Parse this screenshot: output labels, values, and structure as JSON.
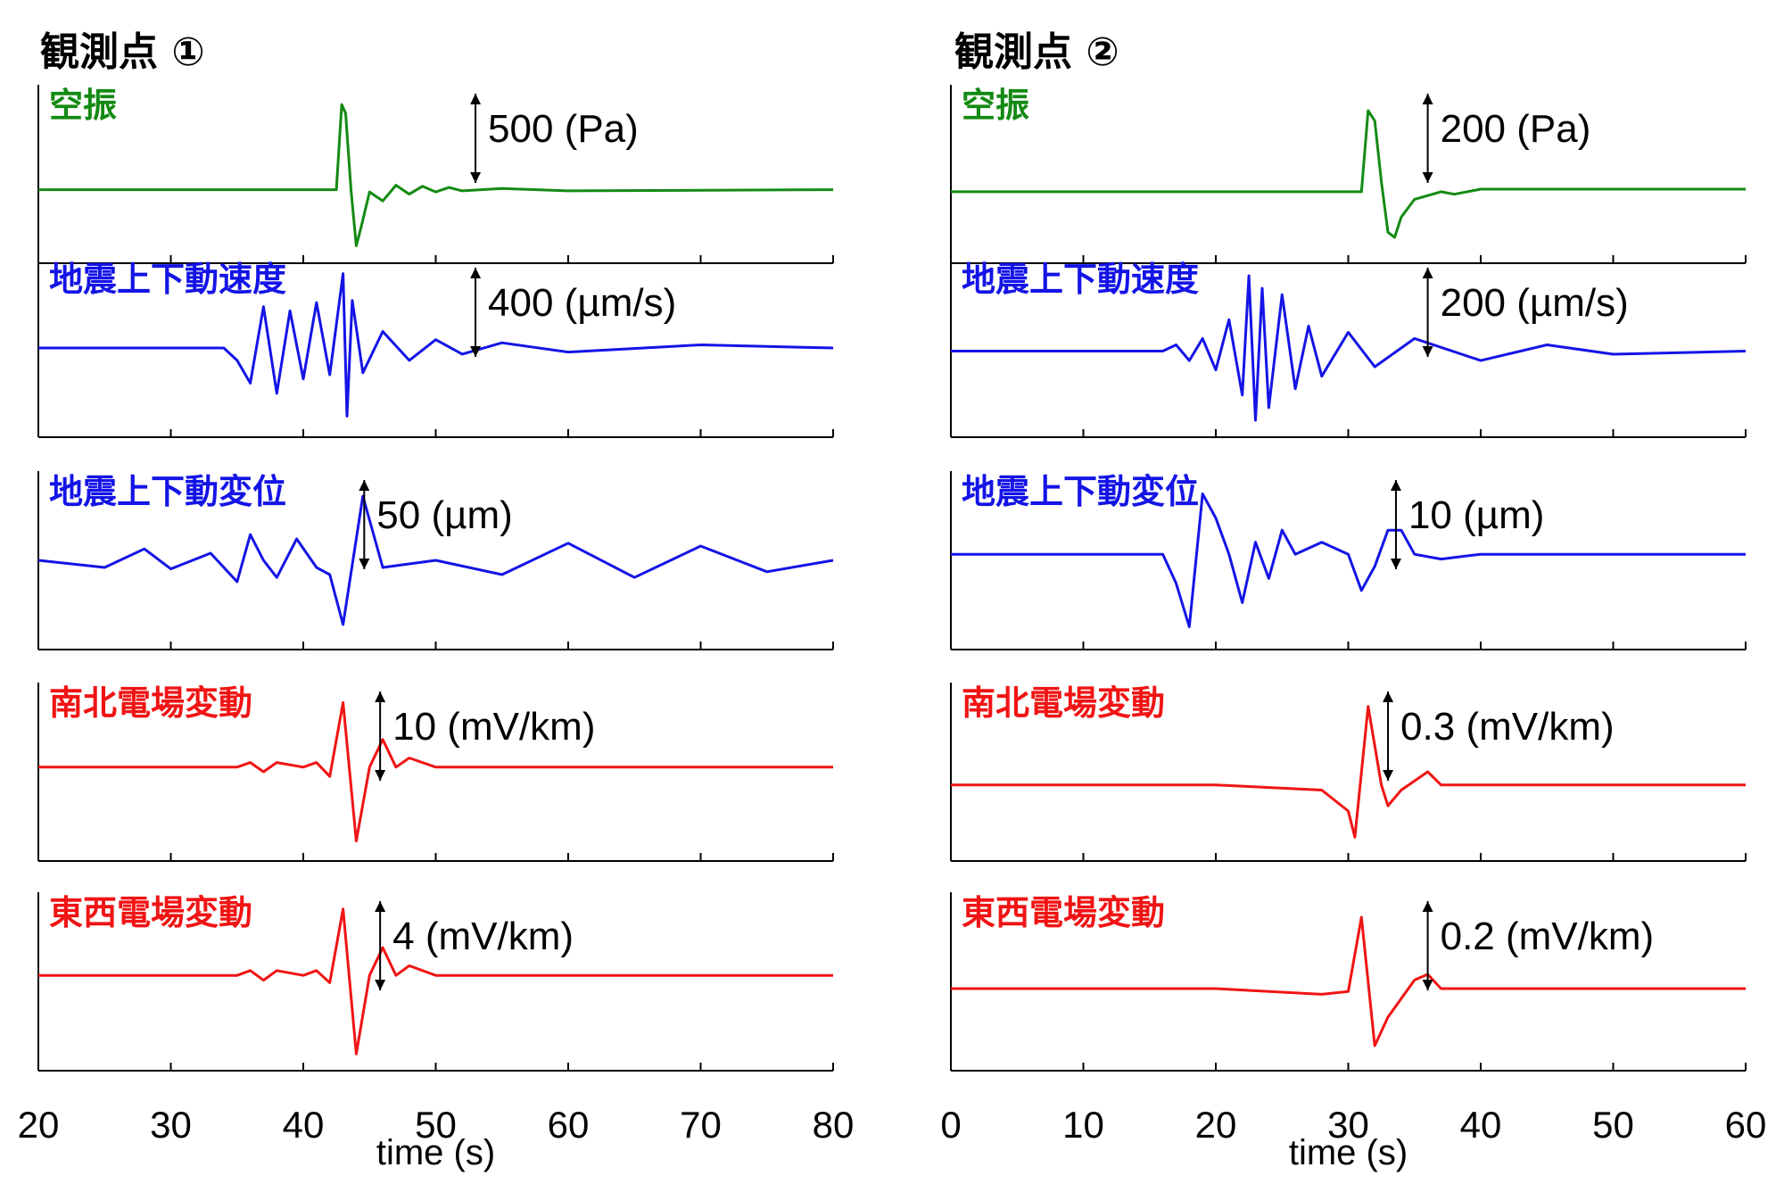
{
  "figure": {
    "columns": [
      {
        "title": "観測点 ①",
        "xlabel": "time (s)"
      },
      {
        "title": "観測点 ②",
        "xlabel": "time (s)"
      }
    ]
  },
  "colors": {
    "air": "#138a13",
    "seismic": "#1414e6",
    "electric": "#f01414"
  },
  "chart_data": [
    {
      "type": "line",
      "site": "観測点 ①",
      "xlabel": "time (s)",
      "xlim": [
        20,
        80
      ],
      "xticks": [
        20,
        30,
        40,
        50,
        60,
        70,
        80
      ],
      "panels": [
        {
          "name": "空振",
          "color": "#138a13",
          "scale": "500 (Pa)",
          "points": [
            [
              20,
              0
            ],
            [
              42.5,
              0
            ],
            [
              42.9,
              380
            ],
            [
              43.2,
              340
            ],
            [
              43.6,
              0
            ],
            [
              44,
              -250
            ],
            [
              44.4,
              -160
            ],
            [
              45,
              -10
            ],
            [
              46,
              -50
            ],
            [
              47,
              20
            ],
            [
              48,
              -20
            ],
            [
              49,
              15
            ],
            [
              50,
              -10
            ],
            [
              51,
              10
            ],
            [
              52,
              -5
            ],
            [
              55,
              5
            ],
            [
              60,
              -5
            ],
            [
              80,
              0
            ]
          ]
        },
        {
          "name": "地震上下動速度",
          "color": "#1414e6",
          "scale": "400 (µm/s)",
          "points": [
            [
              20,
              0
            ],
            [
              34,
              0
            ],
            [
              35,
              -60
            ],
            [
              36,
              -170
            ],
            [
              37,
              200
            ],
            [
              38,
              -220
            ],
            [
              39,
              180
            ],
            [
              40,
              -150
            ],
            [
              41,
              220
            ],
            [
              42,
              -130
            ],
            [
              43,
              360
            ],
            [
              43.3,
              -330
            ],
            [
              43.7,
              230
            ],
            [
              44.5,
              -120
            ],
            [
              46,
              80
            ],
            [
              48,
              -60
            ],
            [
              50,
              40
            ],
            [
              52,
              -30
            ],
            [
              55,
              25
            ],
            [
              60,
              -20
            ],
            [
              70,
              15
            ],
            [
              80,
              0
            ]
          ]
        },
        {
          "name": "地震上下動変位",
          "color": "#1414e6",
          "scale": "50 (µm)",
          "points": [
            [
              20,
              0
            ],
            [
              25,
              -5
            ],
            [
              28,
              8
            ],
            [
              30,
              -6
            ],
            [
              33,
              5
            ],
            [
              35,
              -15
            ],
            [
              36,
              18
            ],
            [
              37,
              0
            ],
            [
              38,
              -12
            ],
            [
              39.5,
              15
            ],
            [
              41,
              -5
            ],
            [
              42,
              -10
            ],
            [
              43,
              -45
            ],
            [
              44.5,
              45
            ],
            [
              46,
              -5
            ],
            [
              50,
              0
            ],
            [
              55,
              -10
            ],
            [
              60,
              12
            ],
            [
              65,
              -12
            ],
            [
              70,
              10
            ],
            [
              75,
              -8
            ],
            [
              80,
              0
            ]
          ]
        },
        {
          "name": "南北電場変動",
          "color": "#f01414",
          "scale": "10 (mV/km)",
          "points": [
            [
              20,
              0
            ],
            [
              35,
              0
            ],
            [
              36,
              1
            ],
            [
              37,
              -1
            ],
            [
              38,
              1
            ],
            [
              40,
              0
            ],
            [
              41,
              1
            ],
            [
              42,
              -2
            ],
            [
              43,
              14
            ],
            [
              44,
              -16
            ],
            [
              45,
              0
            ],
            [
              46,
              6
            ],
            [
              47,
              0
            ],
            [
              48,
              2
            ],
            [
              50,
              0
            ],
            [
              55,
              0
            ],
            [
              60,
              0
            ],
            [
              80,
              0
            ]
          ]
        },
        {
          "name": "東西電場変動",
          "color": "#f01414",
          "scale": "4 (mV/km)",
          "points": [
            [
              20,
              0
            ],
            [
              35,
              0
            ],
            [
              36,
              0.4
            ],
            [
              37,
              -0.4
            ],
            [
              38,
              0.4
            ],
            [
              40,
              0
            ],
            [
              41,
              0.4
            ],
            [
              42,
              -0.6
            ],
            [
              43,
              5.5
            ],
            [
              44,
              -6.5
            ],
            [
              45,
              0
            ],
            [
              46,
              2.3
            ],
            [
              47,
              0
            ],
            [
              48,
              0.8
            ],
            [
              50,
              0
            ],
            [
              60,
              0
            ],
            [
              80,
              0
            ]
          ]
        }
      ]
    },
    {
      "type": "line",
      "site": "観測点 ②",
      "xlabel": "time (s)",
      "xlim": [
        0,
        60
      ],
      "xticks": [
        0,
        10,
        20,
        30,
        40,
        50,
        60
      ],
      "panels": [
        {
          "name": "空振",
          "color": "#138a13",
          "scale": "200 (Pa)",
          "points": [
            [
              0,
              0
            ],
            [
              31,
              0
            ],
            [
              31.5,
              160
            ],
            [
              32,
              140
            ],
            [
              32.5,
              20
            ],
            [
              33,
              -80
            ],
            [
              33.5,
              -90
            ],
            [
              34,
              -50
            ],
            [
              35,
              -15
            ],
            [
              37,
              0
            ],
            [
              38,
              -5
            ],
            [
              40,
              5
            ],
            [
              45,
              5
            ],
            [
              50,
              5
            ],
            [
              60,
              5
            ]
          ]
        },
        {
          "name": "地震上下動速度",
          "color": "#1414e6",
          "scale": "200 (µm/s)",
          "points": [
            [
              0,
              0
            ],
            [
              16,
              0
            ],
            [
              17,
              10
            ],
            [
              18,
              -15
            ],
            [
              19,
              20
            ],
            [
              20,
              -30
            ],
            [
              21,
              50
            ],
            [
              22,
              -70
            ],
            [
              22.5,
              120
            ],
            [
              23,
              -110
            ],
            [
              23.5,
              100
            ],
            [
              24,
              -90
            ],
            [
              25,
              90
            ],
            [
              26,
              -60
            ],
            [
              27,
              40
            ],
            [
              28,
              -40
            ],
            [
              30,
              30
            ],
            [
              32,
              -25
            ],
            [
              35,
              20
            ],
            [
              40,
              -15
            ],
            [
              45,
              10
            ],
            [
              50,
              -5
            ],
            [
              60,
              0
            ]
          ]
        },
        {
          "name": "地震上下動変位",
          "color": "#1414e6",
          "scale": "10 (µm)",
          "points": [
            [
              0,
              0
            ],
            [
              16,
              0
            ],
            [
              17,
              -12
            ],
            [
              18,
              -30
            ],
            [
              19,
              25
            ],
            [
              20,
              15
            ],
            [
              21,
              0
            ],
            [
              22,
              -20
            ],
            [
              23,
              5
            ],
            [
              24,
              -10
            ],
            [
              25,
              10
            ],
            [
              26,
              0
            ],
            [
              28,
              5
            ],
            [
              30,
              0
            ],
            [
              31,
              -15
            ],
            [
              32,
              -5
            ],
            [
              33,
              10
            ],
            [
              34,
              10
            ],
            [
              35,
              0
            ],
            [
              37,
              -2
            ],
            [
              40,
              0
            ],
            [
              50,
              0
            ],
            [
              60,
              0
            ]
          ]
        },
        {
          "name": "南北電場変動",
          "color": "#f01414",
          "scale": "0.3 (mV/km)",
          "points": [
            [
              0,
              0
            ],
            [
              10,
              0
            ],
            [
              20,
              0
            ],
            [
              28,
              -0.02
            ],
            [
              30,
              -0.1
            ],
            [
              30.5,
              -0.2
            ],
            [
              31.5,
              0.3
            ],
            [
              32.5,
              0
            ],
            [
              33,
              -0.08
            ],
            [
              34,
              -0.02
            ],
            [
              36,
              0.05
            ],
            [
              37,
              0
            ],
            [
              40,
              0
            ],
            [
              50,
              0
            ],
            [
              60,
              0
            ]
          ]
        },
        {
          "name": "東西電場変動",
          "color": "#f01414",
          "scale": "0.2 (mV/km)",
          "points": [
            [
              0,
              0
            ],
            [
              10,
              0
            ],
            [
              20,
              0
            ],
            [
              28,
              -0.02
            ],
            [
              30,
              -0.01
            ],
            [
              31,
              0.25
            ],
            [
              32,
              -0.2
            ],
            [
              33,
              -0.1
            ],
            [
              35,
              0.03
            ],
            [
              36,
              0.05
            ],
            [
              37,
              0
            ],
            [
              40,
              0
            ],
            [
              50,
              0
            ],
            [
              60,
              0
            ]
          ]
        }
      ]
    }
  ]
}
